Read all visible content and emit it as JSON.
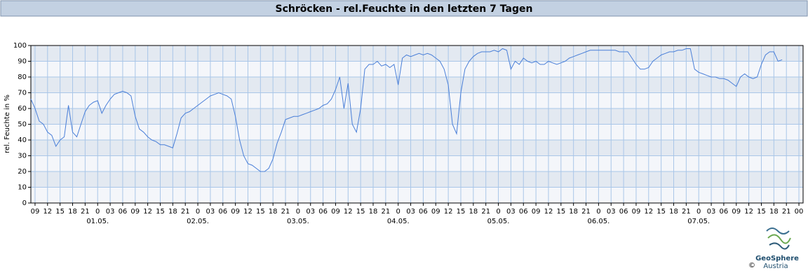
{
  "header": {
    "title": "Schröcken - rel.Feuchte in den letzten 7 Tagen"
  },
  "logo": {
    "name": "GeoSphere",
    "sub": "Austria",
    "copyright": "©"
  },
  "chart_data": {
    "type": "line",
    "ylabel": "rel. Feuchte in %",
    "xlim": [
      8,
      193
    ],
    "ylim": [
      0,
      100
    ],
    "yticks": [
      0,
      10,
      20,
      30,
      40,
      50,
      60,
      70,
      80,
      90,
      100
    ],
    "grid": true,
    "xticks": [
      {
        "value": 9,
        "label": "09"
      },
      {
        "value": 12,
        "label": "12"
      },
      {
        "value": 15,
        "label": "15"
      },
      {
        "value": 18,
        "label": "18"
      },
      {
        "value": 21,
        "label": "21"
      },
      {
        "value": 24,
        "label": "0"
      },
      {
        "value": 27,
        "label": "03"
      },
      {
        "value": 30,
        "label": "06"
      },
      {
        "value": 33,
        "label": "09"
      },
      {
        "value": 36,
        "label": "12"
      },
      {
        "value": 39,
        "label": "15"
      },
      {
        "value": 42,
        "label": "18"
      },
      {
        "value": 45,
        "label": "21"
      },
      {
        "value": 48,
        "label": "0"
      },
      {
        "value": 51,
        "label": "03"
      },
      {
        "value": 54,
        "label": "06"
      },
      {
        "value": 57,
        "label": "09"
      },
      {
        "value": 60,
        "label": "12"
      },
      {
        "value": 63,
        "label": "15"
      },
      {
        "value": 66,
        "label": "18"
      },
      {
        "value": 69,
        "label": "21"
      },
      {
        "value": 72,
        "label": "0"
      },
      {
        "value": 75,
        "label": "03"
      },
      {
        "value": 78,
        "label": "06"
      },
      {
        "value": 81,
        "label": "09"
      },
      {
        "value": 84,
        "label": "12"
      },
      {
        "value": 87,
        "label": "15"
      },
      {
        "value": 90,
        "label": "18"
      },
      {
        "value": 93,
        "label": "21"
      },
      {
        "value": 96,
        "label": "0"
      },
      {
        "value": 99,
        "label": "03"
      },
      {
        "value": 102,
        "label": "06"
      },
      {
        "value": 105,
        "label": "09"
      },
      {
        "value": 108,
        "label": "12"
      },
      {
        "value": 111,
        "label": "15"
      },
      {
        "value": 114,
        "label": "18"
      },
      {
        "value": 117,
        "label": "21"
      },
      {
        "value": 120,
        "label": "0"
      },
      {
        "value": 123,
        "label": "03"
      },
      {
        "value": 126,
        "label": "06"
      },
      {
        "value": 129,
        "label": "09"
      },
      {
        "value": 132,
        "label": "12"
      },
      {
        "value": 135,
        "label": "15"
      },
      {
        "value": 138,
        "label": "18"
      },
      {
        "value": 141,
        "label": "21"
      },
      {
        "value": 144,
        "label": "0"
      },
      {
        "value": 147,
        "label": "03"
      },
      {
        "value": 150,
        "label": "06"
      },
      {
        "value": 153,
        "label": "09"
      },
      {
        "value": 156,
        "label": "12"
      },
      {
        "value": 159,
        "label": "15"
      },
      {
        "value": 162,
        "label": "18"
      },
      {
        "value": 165,
        "label": "21"
      },
      {
        "value": 168,
        "label": "0"
      },
      {
        "value": 171,
        "label": "03"
      },
      {
        "value": 174,
        "label": "06"
      },
      {
        "value": 177,
        "label": "09"
      },
      {
        "value": 180,
        "label": "12"
      },
      {
        "value": 183,
        "label": "15"
      },
      {
        "value": 186,
        "label": "18"
      },
      {
        "value": 189,
        "label": "21"
      },
      {
        "value": 192,
        "label": "00"
      }
    ],
    "dates": [
      {
        "value": 24,
        "label": "01.05."
      },
      {
        "value": 48,
        "label": "02.05."
      },
      {
        "value": 72,
        "label": "03.05."
      },
      {
        "value": 96,
        "label": "04.05."
      },
      {
        "value": 120,
        "label": "05.05."
      },
      {
        "value": 144,
        "label": "06.05."
      },
      {
        "value": 168,
        "label": "07.05."
      }
    ],
    "x": [
      8,
      9,
      10,
      11,
      12,
      13,
      14,
      15,
      16,
      17,
      18,
      19,
      20,
      21,
      22,
      23,
      24,
      25,
      26,
      27,
      28,
      29,
      30,
      31,
      32,
      33,
      34,
      35,
      36,
      37,
      38,
      39,
      40,
      41,
      42,
      43,
      44,
      45,
      46,
      47,
      48,
      49,
      50,
      51,
      52,
      53,
      54,
      55,
      56,
      57,
      58,
      59,
      60,
      61,
      62,
      63,
      64,
      65,
      66,
      67,
      68,
      69,
      70,
      71,
      72,
      73,
      74,
      75,
      76,
      77,
      78,
      79,
      80,
      81,
      82,
      83,
      84,
      85,
      86,
      87,
      88,
      89,
      90,
      91,
      92,
      93,
      94,
      95,
      96,
      97,
      98,
      99,
      100,
      101,
      102,
      103,
      104,
      105,
      106,
      107,
      108,
      109,
      110,
      111,
      112,
      113,
      114,
      115,
      116,
      117,
      118,
      119,
      120,
      121,
      122,
      123,
      124,
      125,
      126,
      127,
      128,
      129,
      130,
      131,
      132,
      133,
      134,
      135,
      136,
      137,
      138,
      139,
      140,
      141,
      142,
      143,
      144,
      145,
      146,
      147,
      148,
      149,
      150,
      151,
      152,
      153,
      154,
      155,
      156,
      157,
      158,
      159,
      160,
      161,
      162,
      163,
      164,
      165,
      166,
      167,
      168,
      169,
      170,
      171,
      172,
      173,
      174,
      175,
      176,
      177,
      178,
      179,
      180,
      181,
      182,
      183,
      184,
      185,
      186,
      187,
      188
    ],
    "series": [
      {
        "name": "rel. Feuchte",
        "color": "#4a7fd8",
        "values": [
          66,
          60,
          52,
          50,
          45,
          43,
          36,
          40,
          42,
          62,
          45,
          42,
          50,
          58,
          62,
          64,
          65,
          57,
          62,
          66,
          69,
          70,
          71,
          70,
          68,
          55,
          47,
          45,
          42,
          40,
          39,
          37,
          37,
          36,
          35,
          44,
          54,
          57,
          58,
          60,
          62,
          64,
          66,
          68,
          69,
          70,
          69,
          68,
          66,
          55,
          40,
          30,
          25,
          24,
          22,
          20,
          20,
          22,
          28,
          38,
          45,
          53,
          54,
          55,
          55,
          56,
          57,
          58,
          59,
          60,
          62,
          63,
          66,
          72,
          80,
          60,
          76,
          50,
          45,
          60,
          85,
          88,
          88,
          90,
          87,
          88,
          86,
          88,
          75,
          92,
          94,
          93,
          94,
          95,
          94,
          95,
          94,
          92,
          90,
          85,
          75,
          50,
          44,
          70,
          85,
          90,
          93,
          95,
          96,
          96,
          96,
          97,
          96,
          98,
          97,
          85,
          90,
          88,
          92,
          90,
          89,
          90,
          88,
          88,
          90,
          89,
          88,
          89,
          90,
          92,
          93,
          94,
          95,
          96,
          97,
          97,
          97,
          97,
          97,
          97,
          97,
          96,
          96,
          96,
          92,
          88,
          85,
          85,
          86,
          90,
          92,
          94,
          95,
          96,
          96,
          97,
          97,
          98,
          98,
          85,
          83,
          82,
          81,
          80,
          80,
          79,
          79,
          78,
          76,
          74,
          80,
          82,
          80,
          79,
          80,
          88,
          94,
          96,
          96,
          90,
          91
        ]
      }
    ]
  }
}
